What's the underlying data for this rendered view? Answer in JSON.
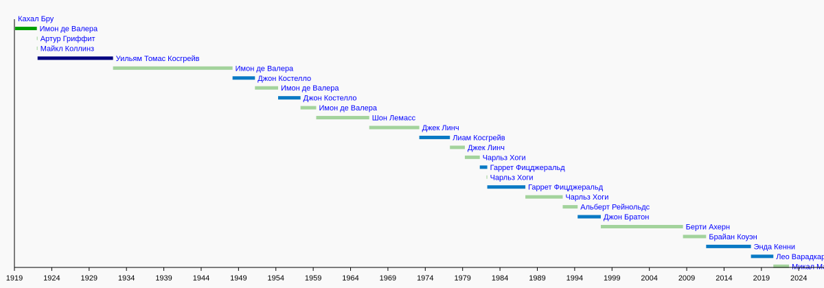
{
  "colors": {
    "background": "#f9f9f9",
    "axis": "#000000",
    "label_text": "#0000ff",
    "dark_blue": "#000080",
    "blue": "#0a7ac4",
    "light_green": "#a3d39c",
    "green": "#00a000"
  },
  "chart_data": {
    "type": "bar",
    "orientation": "timeline",
    "xlim": [
      1919,
      2026
    ],
    "x_ticks": [
      "1919",
      "1924",
      "1929",
      "1934",
      "1939",
      "1944",
      "1949",
      "1954",
      "1959",
      "1964",
      "1969",
      "1974",
      "1979",
      "1984",
      "1989",
      "1994",
      "1999",
      "2004",
      "2009",
      "2014",
      "2019",
      "2024"
    ],
    "grid": false,
    "legend": "none",
    "series": [
      {
        "label": "Кахал Бру",
        "start": 1919.1,
        "end": 1919.1,
        "color": "light_green"
      },
      {
        "label": "Имон де Валера",
        "start": 1919.1,
        "end": 1922.0,
        "color": "green"
      },
      {
        "label": "Артур Гриффит",
        "start": 1922.0,
        "end": 1922.1,
        "color": "light_green"
      },
      {
        "label": "Майкл Коллинз",
        "start": 1922.0,
        "end": 1922.1,
        "color": "light_green"
      },
      {
        "label": "Уильям Томас Косгрейв",
        "start": 1922.1,
        "end": 1932.2,
        "color": "dark_blue"
      },
      {
        "label": "Имон де Валера",
        "start": 1932.2,
        "end": 1948.2,
        "color": "light_green"
      },
      {
        "label": "Джон Костелло",
        "start": 1948.2,
        "end": 1951.2,
        "color": "blue"
      },
      {
        "label": "Имон де Валера",
        "start": 1951.2,
        "end": 1954.3,
        "color": "light_green"
      },
      {
        "label": "Джон Костелло",
        "start": 1954.3,
        "end": 1957.3,
        "color": "blue"
      },
      {
        "label": "Имон де Валера",
        "start": 1957.3,
        "end": 1959.4,
        "color": "light_green"
      },
      {
        "label": "Шон Лемасс",
        "start": 1959.4,
        "end": 1966.5,
        "color": "light_green"
      },
      {
        "label": "Джек Линч",
        "start": 1966.5,
        "end": 1973.2,
        "color": "light_green"
      },
      {
        "label": "Лиам Косгрейв",
        "start": 1973.2,
        "end": 1977.3,
        "color": "blue"
      },
      {
        "label": "Джек Линч",
        "start": 1977.3,
        "end": 1979.3,
        "color": "light_green"
      },
      {
        "label": "Чарльз Хоги",
        "start": 1979.3,
        "end": 1981.3,
        "color": "light_green"
      },
      {
        "label": "Гаррет Фицджеральд",
        "start": 1981.3,
        "end": 1982.3,
        "color": "blue"
      },
      {
        "label": "Чарльз Хоги",
        "start": 1982.2,
        "end": 1982.3,
        "color": "light_green"
      },
      {
        "label": "Гаррет Фицджеральд",
        "start": 1982.3,
        "end": 1987.4,
        "color": "blue"
      },
      {
        "label": "Чарльз Хоги",
        "start": 1987.4,
        "end": 1992.4,
        "color": "light_green"
      },
      {
        "label": "Альберт Рейнольдс",
        "start": 1992.4,
        "end": 1994.4,
        "color": "light_green"
      },
      {
        "label": "Джон Братон",
        "start": 1994.4,
        "end": 1997.5,
        "color": "blue"
      },
      {
        "label": "Берти  Ахерн",
        "start": 1997.5,
        "end": 2008.5,
        "color": "light_green"
      },
      {
        "label": "Брайан Коуэн",
        "start": 2008.5,
        "end": 2011.6,
        "color": "light_green"
      },
      {
        "label": "Энда Кенни",
        "start": 2011.6,
        "end": 2017.6,
        "color": "blue"
      },
      {
        "label": "Лео Варадкар",
        "start": 2017.6,
        "end": 2020.6,
        "color": "blue"
      },
      {
        "label": "Микал Мартин",
        "start": 2020.6,
        "end": 2022.7,
        "color": "light_green"
      }
    ]
  }
}
